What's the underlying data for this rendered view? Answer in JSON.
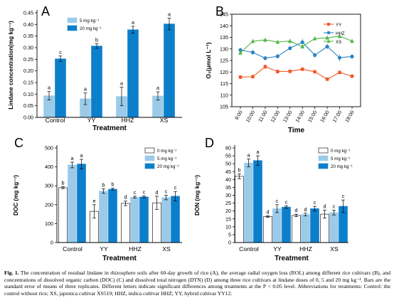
{
  "panels": [
    {
      "letter": "A",
      "chart_data": {
        "type": "bar",
        "categories": [
          "Control",
          "YY",
          "HHZ",
          "XS"
        ],
        "xlabel": "Treatment",
        "ylabel": "Lindane concentration(mg kg⁻¹)",
        "ylim": [
          0,
          0.45
        ],
        "yticks": [
          "0.00",
          "0.05",
          "0.10",
          "0.15",
          "0.20",
          "0.25",
          "0.30",
          "0.35",
          "0.40",
          "0.45"
        ],
        "legend_position": "top-left",
        "series": [
          {
            "name": "5 mg kg⁻¹",
            "color": "#9ccbe9",
            "values": [
              0.093,
              0.08,
              0.09,
              0.092
            ],
            "errors": [
              0.018,
              0.025,
              0.04,
              0.018
            ],
            "letters": [
              "a",
              "a",
              "a",
              "a"
            ]
          },
          {
            "name": "20 mg kg⁻¹",
            "color": "#0c7fcb",
            "values": [
              0.252,
              0.307,
              0.377,
              0.402
            ],
            "errors": [
              0.012,
              0.01,
              0.015,
              0.025
            ],
            "letters": [
              "c",
              "b",
              "a",
              "a"
            ]
          }
        ]
      }
    },
    {
      "letter": "B",
      "chart_data": {
        "type": "line",
        "x": [
          "9:00",
          "10:00",
          "11:00",
          "12:00",
          "13:00",
          "14:00",
          "15:00",
          "16:00",
          "17:00",
          "18:00"
        ],
        "xlabel": "Time",
        "ylabel": "O₂(μmol L⁻¹)",
        "ylim": [
          105,
          145
        ],
        "yticks": [
          "105",
          "110",
          "115",
          "120",
          "125",
          "130",
          "135",
          "140",
          "145"
        ],
        "legend_position": "top-right",
        "series": [
          {
            "name": "YY",
            "color": "#ef5a28",
            "marker": "square",
            "values": [
              117.8,
              118.0,
              122.3,
              120.2,
              120.3,
              121.2,
              120.1,
              116.9,
              119.8,
              118.2
            ],
            "errors": [
              0.8,
              0.8,
              1.0,
              0.8,
              0.8,
              0.8,
              0.8,
              0.8,
              0.8,
              0.8
            ]
          },
          {
            "name": "HHZ",
            "color": "#2b84c6",
            "marker": "circle",
            "values": [
              129.5,
              128.5,
              126.0,
              126.8,
              130.3,
              132.9,
              127.3,
              131.0,
              126.2,
              126.7
            ],
            "errors": [
              1.0,
              1.0,
              1.0,
              1.0,
              1.0,
              1.5,
              1.0,
              1.0,
              1.5,
              1.0
            ]
          },
          {
            "name": "XS",
            "color": "#50b748",
            "marker": "triangle",
            "values": [
              128.3,
              133.3,
              133.9,
              133.0,
              133.4,
              131.0,
              134.5,
              134.8,
              135.5,
              133.4
            ],
            "errors": [
              1.0,
              1.0,
              1.0,
              1.0,
              1.0,
              1.0,
              1.0,
              1.0,
              1.0,
              1.0
            ]
          }
        ]
      }
    },
    {
      "letter": "C",
      "chart_data": {
        "type": "bar",
        "categories": [
          "Control",
          "YY",
          "HHZ",
          "XS"
        ],
        "xlabel": "Treatment",
        "ylabel": "DOC (mg kg⁻¹)",
        "ylim": [
          0,
          500
        ],
        "yticks": [
          "0",
          "100",
          "200",
          "300",
          "400",
          "500"
        ],
        "legend_position": "top-right",
        "series": [
          {
            "name": "0 mg kg⁻¹",
            "color": "#ffffff",
            "values": [
              290,
              165,
              207,
              210
            ],
            "errors": [
              5,
              35,
              12,
              35
            ],
            "letters": [
              "b",
              "e",
              "d",
              "d"
            ]
          },
          {
            "name": "5 mg kg⁻¹",
            "color": "#9ccbe9",
            "values": [
              410,
              272,
              240,
              238
            ],
            "errors": [
              15,
              12,
              5,
              12
            ],
            "letters": [
              "a",
              "b",
              "c",
              "c"
            ]
          },
          {
            "name": "20 mg kg⁻¹",
            "color": "#0c7fcb",
            "values": [
              415,
              282,
              241,
              245
            ],
            "errors": [
              25,
              5,
              5,
              25
            ],
            "letters": [
              "a",
              "b",
              "c",
              "c"
            ]
          }
        ]
      }
    },
    {
      "letter": "D",
      "chart_data": {
        "type": "bar",
        "categories": [
          "Control",
          "YY",
          "HHZ",
          "XS"
        ],
        "xlabel": "Treatment",
        "ylabel": "DON (mg kg⁻¹)",
        "ylim": [
          0,
          60
        ],
        "yticks": [
          "0",
          "5",
          "10",
          "15",
          "20",
          "25",
          "30",
          "35",
          "40",
          "45",
          "50",
          "55",
          "60"
        ],
        "legend_position": "top-right",
        "series": [
          {
            "name": "0 mg kg⁻¹",
            "color": "#ffffff",
            "values": [
              42,
              16.5,
              17.2,
              18
            ],
            "errors": [
              1.5,
              0.5,
              0.8,
              2.5
            ],
            "letters": [
              "b",
              "d",
              "d",
              "d"
            ]
          },
          {
            "name": "5 mg kg⁻¹",
            "color": "#9ccbe9",
            "values": [
              50.5,
              21.5,
              17.8,
              19
            ],
            "errors": [
              2.5,
              2.5,
              0.8,
              1.5
            ],
            "letters": [
              "a",
              "c",
              "d",
              "c"
            ]
          },
          {
            "name": "20 mg kg⁻¹",
            "color": "#0c7fcb",
            "values": [
              52,
              22.5,
              21.5,
              23
            ],
            "errors": [
              3,
              0.8,
              1.5,
              4
            ],
            "letters": [
              "a",
              "c",
              "c",
              "c"
            ]
          }
        ]
      }
    }
  ],
  "caption": {
    "label": "Fig. 1.",
    "text": " The concentration of residual lindane in rhizosphere soils after 60-day growth of rice (A), the average radial oxygen loss (ROL) among different rice cultivars (B), and concentrations of dissolved organic carbon (DOC) (C) and dissolved total nitrogen (DTN) (D) among three rice cultivars at lindane doses of 0, 5 and 20 mg kg⁻¹. Bars are the standard error of means of three replicates. Different letters indicate significant differences among treatments at the P < 0.05 level. Abbreviations for treatments: Control: the control without rice; XS, japonica cultivar XS519; HHZ, indica cultivar HHZ; YY, hybrid cultivar YY12."
  }
}
